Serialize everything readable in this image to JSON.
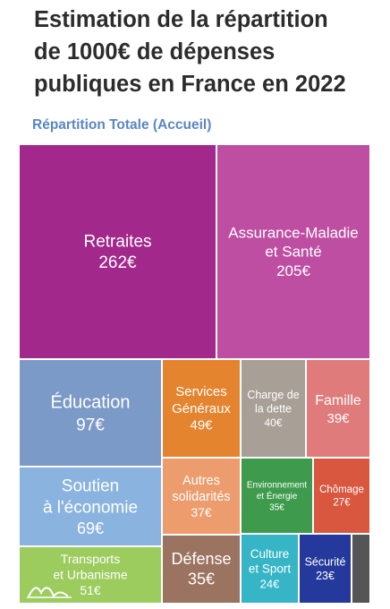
{
  "title_lines": [
    "Estimation de la répartition",
    "de 1000€ de dépenses",
    "publiques en France en 2022"
  ],
  "subtitle": "Répartition Totale (Accueil)",
  "chart_data": {
    "type": "treemap",
    "title": "Estimation de la répartition de 1000€ de dépenses publiques en France en 2022",
    "subtitle": "Répartition Totale (Accueil)",
    "unit": "€",
    "items": [
      {
        "name": "Retraites",
        "value": 262,
        "label": "262€",
        "color": "#a3288c"
      },
      {
        "name": "Assurance-Maladie et Santé",
        "value": 205,
        "label": "205€",
        "color": "#be4ea2"
      },
      {
        "name": "Éducation",
        "value": 97,
        "label": "97€",
        "color": "#7c9ac8"
      },
      {
        "name": "Soutien à l'économie",
        "value": 69,
        "label": "69€",
        "color": "#8ab4df"
      },
      {
        "name": "Transports et Urbanisme",
        "value": 51,
        "label": "51€",
        "color": "#9ccc5e"
      },
      {
        "name": "Services Généraux",
        "value": 49,
        "label": "49€",
        "color": "#e5842f"
      },
      {
        "name": "Autres solidarités",
        "value": 37,
        "label": "37€",
        "color": "#ec9c6d"
      },
      {
        "name": "Défense",
        "value": 35,
        "label": "35€",
        "color": "#9a7361"
      },
      {
        "name": "Charge de la dette",
        "value": 40,
        "label": "40€",
        "color": "#a89f97"
      },
      {
        "name": "Famille",
        "value": 39,
        "label": "39€",
        "color": "#e07b7b"
      },
      {
        "name": "Environnement et Énergie",
        "value": 35,
        "label": "35€",
        "color": "#3e9b4d"
      },
      {
        "name": "Chômage",
        "value": 27,
        "label": "27€",
        "color": "#d9573f"
      },
      {
        "name": "Culture et Sport",
        "value": 24,
        "label": "24€",
        "color": "#35b5c6"
      },
      {
        "name": "Sécurité",
        "value": 23,
        "label": "23€",
        "color": "#24399b"
      },
      {
        "name": "",
        "value": null,
        "label": "",
        "color": "#555555"
      }
    ]
  }
}
